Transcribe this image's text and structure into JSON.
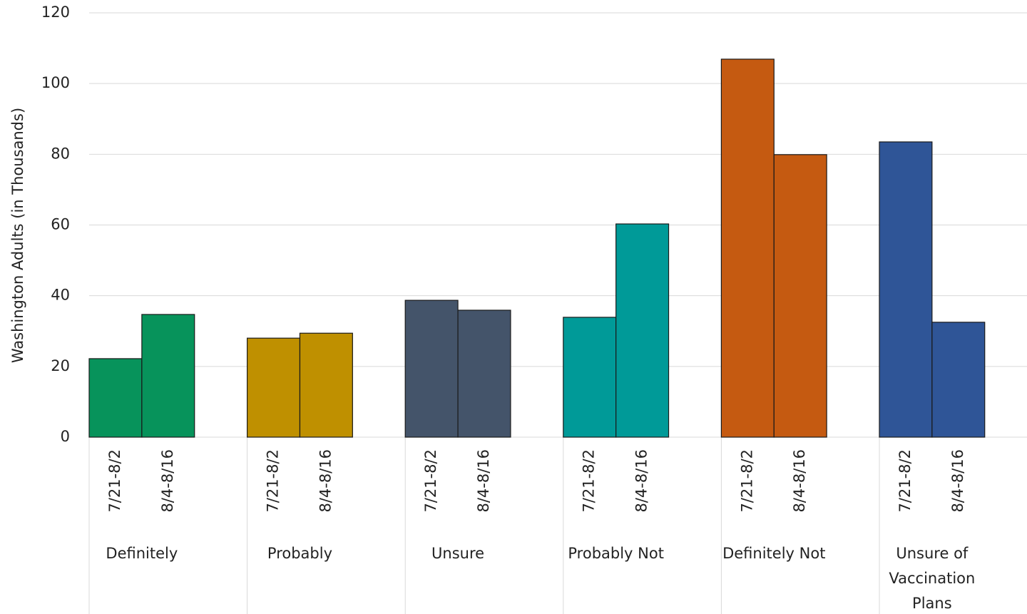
{
  "chart_data": {
    "type": "grouped-bar",
    "y_label": "Washington Adults (in Thousands)",
    "ylim": [
      0,
      120
    ],
    "yticks": [
      0,
      20,
      40,
      60,
      80,
      100,
      120
    ],
    "grid": true,
    "groups": [
      {
        "name": "Definitely",
        "color": "#07935b",
        "categories": [
          "7/21-8/2",
          "8/4-8/16"
        ],
        "values": [
          22.2,
          34.7
        ]
      },
      {
        "name": "Probably",
        "color": "#bf9000",
        "categories": [
          "7/21-8/2",
          "8/4-8/16"
        ],
        "values": [
          28.0,
          29.4
        ]
      },
      {
        "name": "Unsure",
        "color": "#44546a",
        "categories": [
          "7/21-8/2",
          "8/4-8/16"
        ],
        "values": [
          38.7,
          35.9
        ]
      },
      {
        "name": "Probably Not",
        "color": "#009a98",
        "categories": [
          "7/21-8/2",
          "8/4-8/16"
        ],
        "values": [
          33.9,
          60.3
        ]
      },
      {
        "name": "Definitely Not",
        "color": "#c55a11",
        "categories": [
          "7/21-8/2",
          "8/4-8/16"
        ],
        "values": [
          106.9,
          79.9
        ]
      },
      {
        "name": "Unsure of Vaccination Plans",
        "color": "#2f5597",
        "categories": [
          "7/21-8/2",
          "8/4-8/16"
        ],
        "values": [
          83.5,
          32.5
        ]
      }
    ]
  }
}
